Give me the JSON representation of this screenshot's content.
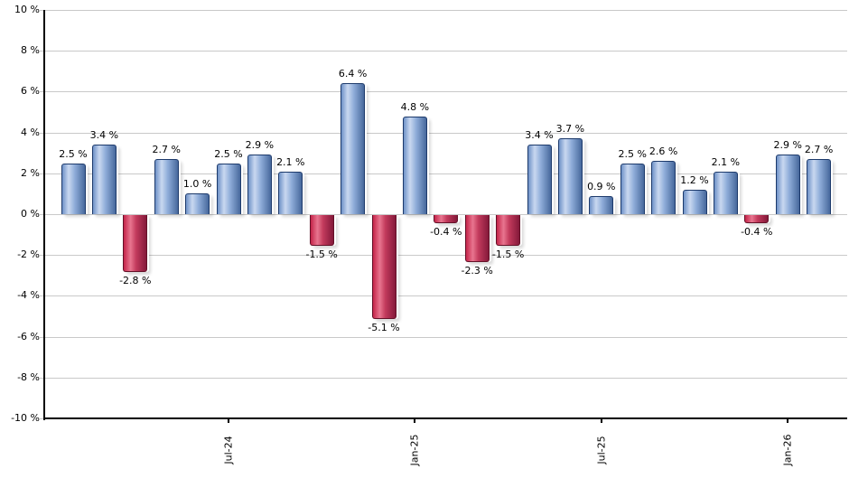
{
  "chart_data": {
    "type": "bar",
    "title": "",
    "xlabel": "",
    "ylabel": "",
    "ylim": [
      -10,
      10
    ],
    "grid": "horizontal-only",
    "legend": "none",
    "n_bars": 25,
    "values": [
      2.5,
      3.4,
      -2.8,
      2.7,
      1.0,
      2.5,
      2.9,
      2.1,
      -1.5,
      6.4,
      -5.1,
      4.8,
      -0.4,
      -2.3,
      -1.5,
      3.4,
      3.7,
      0.9,
      2.5,
      2.6,
      1.2,
      2.1,
      -0.4,
      2.9,
      2.7
    ],
    "value_labels": [
      "2.5 %",
      "3.4 %",
      "-2.8 %",
      "2.7 %",
      "1.0 %",
      "2.5 %",
      "2.9 %",
      "2.1 %",
      "-1.5 %",
      "6.4 %",
      "-5.1 %",
      "4.8 %",
      "-0.4 %",
      "-2.3 %",
      "-1.5 %",
      "3.4 %",
      "3.7 %",
      "0.9 %",
      "2.5 %",
      "2.6 %",
      "1.2 %",
      "2.1 %",
      "-0.4 %",
      "2.9 %",
      "2.7 %"
    ],
    "y_tick_labels": [
      "10 %",
      "8 %",
      "6 %",
      "4 %",
      "2 %",
      "0 %",
      "-2 %",
      "-4 %",
      "-6 %",
      "-8 %",
      "-10 %"
    ],
    "y_tick_values": [
      10,
      8,
      6,
      4,
      2,
      0,
      -2,
      -4,
      -6,
      -8,
      -10
    ],
    "x_axis_ticks": [
      {
        "label": "Jul-24",
        "bar_index": 5
      },
      {
        "label": "Jan-25",
        "bar_index": 11
      },
      {
        "label": "Jul-25",
        "bar_index": 17
      },
      {
        "label": "Jan-26",
        "bar_index": 23
      }
    ],
    "colors": {
      "positive_bar": "#7294cc",
      "positive_bar_highlight": "#c9d8f0",
      "positive_bar_border": "#1d3a6b",
      "negative_bar": "#c42449",
      "negative_bar_highlight": "#e8758f",
      "negative_bar_border": "#641128",
      "gridline": "#c9c9c9",
      "axis": "#000000",
      "label_text": "#000000",
      "background": "#ffffff"
    }
  }
}
